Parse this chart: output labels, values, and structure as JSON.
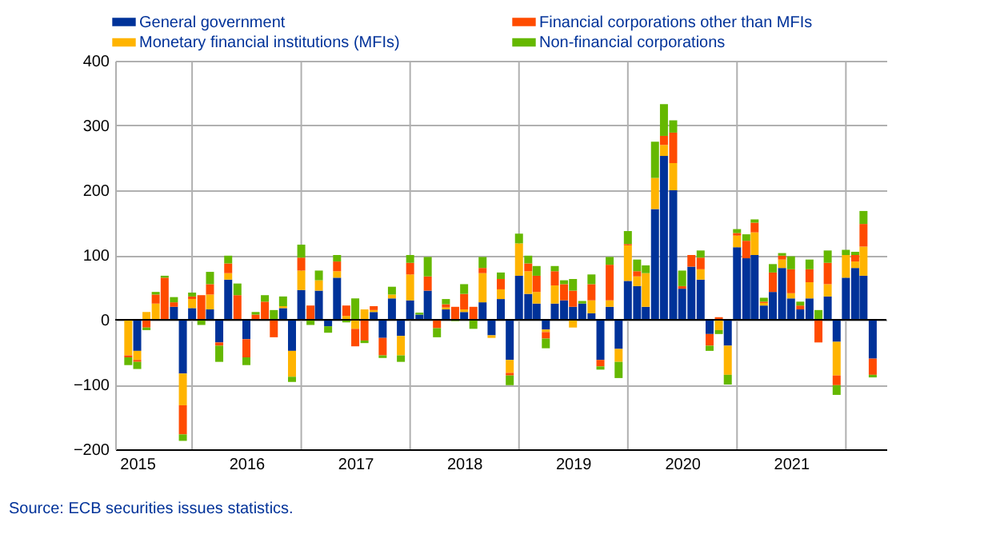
{
  "chart_data": {
    "type": "bar",
    "stacked": true,
    "x": [
      "2015-06",
      "2015-07",
      "2015-08",
      "2015-09",
      "2015-10",
      "2015-11",
      "2015-12",
      "2016-01",
      "2016-02",
      "2016-03",
      "2016-04",
      "2016-05",
      "2016-06",
      "2016-07",
      "2016-08",
      "2016-09",
      "2016-10",
      "2016-11",
      "2016-12",
      "2017-01",
      "2017-02",
      "2017-03",
      "2017-04",
      "2017-05",
      "2017-06",
      "2017-07",
      "2017-08",
      "2017-09",
      "2017-10",
      "2017-11",
      "2017-12",
      "2018-01",
      "2018-02",
      "2018-03",
      "2018-04",
      "2018-05",
      "2018-06",
      "2018-07",
      "2018-08",
      "2018-09",
      "2018-10",
      "2018-11",
      "2018-12",
      "2019-01",
      "2019-02",
      "2019-03",
      "2019-04",
      "2019-05",
      "2019-06",
      "2019-07",
      "2019-08",
      "2019-09",
      "2019-10",
      "2019-11",
      "2019-12",
      "2020-01",
      "2020-02",
      "2020-03",
      "2020-04",
      "2020-05",
      "2020-06",
      "2020-07",
      "2020-08",
      "2020-09",
      "2020-10",
      "2020-11",
      "2020-12",
      "2021-01",
      "2021-02",
      "2021-03",
      "2021-04",
      "2021-05",
      "2021-06",
      "2021-07",
      "2021-08",
      "2021-09",
      "2021-10",
      "2021-11",
      "2021-12",
      "2022-01",
      "2022-02",
      "2022-03",
      "2022-04"
    ],
    "series": [
      {
        "name": "General government",
        "color": "#003299",
        "values": [
          null,
          -48,
          null,
          null,
          null,
          20,
          -83,
          18,
          null,
          16,
          -35,
          62,
          null,
          -30,
          null,
          null,
          null,
          18,
          -48,
          46,
          null,
          45,
          -10,
          65,
          null,
          null,
          null,
          12,
          -28,
          33,
          -25,
          30,
          8,
          45,
          null,
          16,
          null,
          12,
          null,
          27,
          -24,
          32,
          -62,
          68,
          40,
          25,
          -15,
          25,
          30,
          20,
          25,
          10,
          -62,
          20,
          -45,
          60,
          52,
          20,
          171,
          253,
          200,
          48,
          82,
          62,
          -22,
          null,
          -40,
          112,
          95,
          100,
          22,
          43,
          80,
          33,
          16,
          33,
          null,
          36,
          -34,
          65,
          80,
          68,
          -60
        ]
      },
      {
        "name": "Monetary financial institutions (MFIs)",
        "color": "#ffb400",
        "values": [
          -55,
          -14,
          12,
          25,
          null,
          null,
          -49,
          14,
          null,
          23,
          null,
          10,
          null,
          null,
          null,
          null,
          null,
          3,
          -40,
          30,
          null,
          16,
          null,
          10,
          6,
          -14,
          16,
          3,
          null,
          6,
          -30,
          40,
          null,
          null,
          null,
          3,
          null,
          4,
          null,
          45,
          -4,
          15,
          -20,
          50,
          35,
          18,
          -4,
          28,
          null,
          -12,
          null,
          20,
          null,
          10,
          -20,
          55,
          15,
          52,
          48,
          17,
          42,
          null,
          null,
          16,
          null,
          -16,
          -45,
          18,
          null,
          35,
          4,
          null,
          13,
          8,
          null,
          25,
          null,
          19,
          -52,
          35,
          10,
          45,
          null
        ]
      },
      {
        "name": "Financial corporations other than MFIs",
        "color": "#ff4b00",
        "values": [
          -3,
          -3,
          -12,
          14,
          65,
          7,
          -45,
          4,
          38,
          16,
          -5,
          15,
          38,
          -28,
          8,
          28,
          -27,
          null,
          null,
          20,
          22,
          null,
          null,
          15,
          16,
          -27,
          -32,
          6,
          -27,
          null,
          null,
          18,
          null,
          22,
          -13,
          5,
          20,
          24,
          20,
          8,
          null,
          16,
          -4,
          null,
          12,
          25,
          -10,
          22,
          25,
          25,
          null,
          25,
          -10,
          55,
          null,
          2,
          8,
          null,
          null,
          14,
          47,
          4,
          18,
          18,
          -18,
          4,
          null,
          4,
          27,
          15,
          2,
          30,
          6,
          37,
          6,
          20,
          -35,
          33,
          -15,
          null,
          10,
          35,
          -25
        ]
      },
      {
        "name": "Non-financial corporations",
        "color": "#65b800",
        "values": [
          -12,
          -11,
          -4,
          4,
          3,
          8,
          -10,
          6,
          -8,
          19,
          -25,
          12,
          18,
          -12,
          4,
          10,
          15,
          15,
          -8,
          20,
          -8,
          15,
          -10,
          10,
          -4,
          33,
          -4,
          null,
          -4,
          12,
          -10,
          12,
          3,
          30,
          -14,
          8,
          -2,
          15,
          -14,
          17,
          null,
          10,
          -15,
          15,
          12,
          15,
          -15,
          8,
          6,
          18,
          4,
          15,
          -5,
          12,
          -25,
          20,
          18,
          12,
          56,
          49,
          19,
          24,
          null,
          11,
          -8,
          -6,
          -15,
          6,
          10,
          5,
          6,
          13,
          4,
          20,
          6,
          15,
          15,
          19,
          -15,
          8,
          5,
          20,
          -4
        ]
      }
    ],
    "xlim": [
      "2015-05-15",
      "2022-04-20"
    ],
    "xticks": [
      {
        "value": "2015-07-01",
        "label": "2015"
      },
      {
        "value": "2016-01-01",
        "label": null
      },
      {
        "value": "2016-07-01",
        "label": "2016"
      },
      {
        "value": "2017-01-01",
        "label": null
      },
      {
        "value": "2017-07-01",
        "label": "2017"
      },
      {
        "value": "2018-01-01",
        "label": null
      },
      {
        "value": "2018-07-01",
        "label": "2018"
      },
      {
        "value": "2019-01-01",
        "label": null
      },
      {
        "value": "2019-07-01",
        "label": "2019"
      },
      {
        "value": "2020-01-01",
        "label": null
      },
      {
        "value": "2020-07-01",
        "label": "2020"
      },
      {
        "value": "2021-01-01",
        "label": null
      },
      {
        "value": "2021-07-01",
        "label": "2021"
      },
      {
        "value": "2022-01-01",
        "label": null
      }
    ],
    "ylim": [
      -200,
      400
    ],
    "yticks": [
      -200,
      -100,
      0,
      100,
      200,
      300,
      400
    ],
    "grid": true,
    "legend": "top",
    "ref_lines": [
      {
        "axis": "y",
        "value": 0,
        "color": "#000000"
      }
    ],
    "annotations": [
      "Source: ECB securities issues statistics."
    ]
  }
}
